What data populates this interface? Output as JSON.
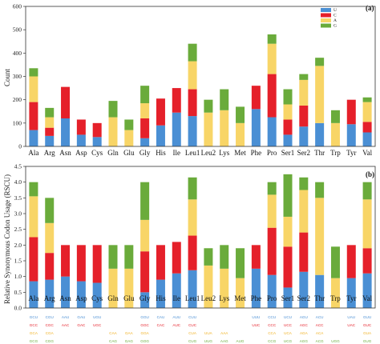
{
  "colors": {
    "U": "#4a8fd4",
    "C": "#e5202a",
    "A": "#f8d567",
    "G": "#6aab3b"
  },
  "legend": [
    "U",
    "C",
    "A",
    "G"
  ],
  "categories": [
    "Ala",
    "Arg",
    "Asn",
    "Asp",
    "Cys",
    "Gln",
    "Glu",
    "Gly",
    "His",
    "Ile",
    "Leu1",
    "Leu2",
    "Lys",
    "Met",
    "Phe",
    "Pro",
    "Ser1",
    "Ser2",
    "Thr",
    "Trp",
    "Tyr",
    "Val"
  ],
  "chart_data": [
    {
      "type": "bar",
      "panel_label": "(a)",
      "ylabel": "Count",
      "ylim": [
        0,
        600
      ],
      "yticks": [
        0,
        100,
        200,
        300,
        400,
        500,
        600
      ],
      "grid": false,
      "legend_position": "top-right",
      "series": [
        {
          "name": "U",
          "values": [
            70,
            45,
            120,
            50,
            40,
            0,
            0,
            35,
            90,
            145,
            130,
            0,
            0,
            0,
            160,
            125,
            50,
            85,
            100,
            0,
            95,
            60
          ]
        },
        {
          "name": "C",
          "values": [
            120,
            35,
            135,
            65,
            60,
            0,
            0,
            85,
            115,
            105,
            115,
            0,
            0,
            0,
            100,
            185,
            65,
            90,
            0,
            0,
            105,
            45
          ]
        },
        {
          "name": "A",
          "values": [
            110,
            45,
            0,
            0,
            0,
            125,
            70,
            65,
            0,
            0,
            120,
            145,
            155,
            100,
            0,
            130,
            65,
            110,
            245,
            100,
            0,
            85
          ]
        },
        {
          "name": "G",
          "values": [
            35,
            40,
            0,
            0,
            0,
            70,
            45,
            75,
            0,
            0,
            75,
            55,
            90,
            70,
            0,
            40,
            65,
            25,
            35,
            55,
            0,
            20
          ]
        }
      ]
    },
    {
      "type": "bar",
      "panel_label": "(b)",
      "ylabel": "Relative Synonymous Codon Usage (RSCU)",
      "ylim": [
        0,
        4.5
      ],
      "yticks": [
        0.0,
        0.5,
        1.0,
        1.5,
        2.0,
        2.5,
        3.0,
        3.5,
        4.0,
        4.5
      ],
      "grid": false,
      "series": [
        {
          "name": "U",
          "values": [
            0.85,
            0.9,
            1.0,
            0.85,
            0.8,
            0,
            0,
            0.5,
            0.9,
            1.1,
            1.2,
            0,
            0,
            0,
            1.25,
            1.05,
            0.65,
            1.15,
            1.05,
            0,
            0.95,
            1.1
          ]
        },
        {
          "name": "C",
          "values": [
            1.4,
            0.85,
            1.0,
            1.15,
            1.2,
            0,
            0,
            1.3,
            1.1,
            1.0,
            1.1,
            0,
            0,
            0,
            0.75,
            1.5,
            1.3,
            1.25,
            0,
            0,
            1.05,
            0.8
          ]
        },
        {
          "name": "A",
          "values": [
            1.3,
            0.95,
            0,
            0,
            0,
            1.25,
            1.25,
            1.0,
            0,
            0,
            1.15,
            1.35,
            1.25,
            0.95,
            0,
            1.05,
            0.95,
            1.35,
            2.45,
            0.95,
            0,
            1.55
          ]
        },
        {
          "name": "G",
          "values": [
            0.45,
            0.8,
            0,
            0,
            0,
            0.75,
            0.75,
            1.2,
            0,
            0,
            0.7,
            0.55,
            0.75,
            0.95,
            0,
            0.4,
            1.35,
            0.4,
            0.5,
            1.0,
            0,
            0.55
          ]
        }
      ]
    }
  ],
  "codons": [
    [
      [
        "GCU",
        "GCC",
        "GCA",
        "GCG"
      ],
      [
        "CGU",
        "CGC",
        "CGA",
        "CGG"
      ]
    ],
    [
      [
        "AAU",
        "AAC",
        "",
        ""
      ],
      [
        "GAU",
        "GAC",
        "",
        ""
      ]
    ],
    [
      [
        "UGU",
        "UGC",
        "",
        ""
      ],
      [
        "",
        "",
        "CAA",
        "CAG"
      ]
    ],
    [
      [
        "",
        "",
        "GAA",
        "GAG"
      ],
      [
        "GGU",
        "GGC",
        "GGA",
        "GGG"
      ]
    ],
    [
      [
        "CAU",
        "CAC",
        "",
        ""
      ],
      [
        "AUU",
        "AUC",
        "",
        ""
      ]
    ],
    [
      [
        "CUU",
        "CUC",
        "CUA",
        "CUG"
      ],
      [
        "",
        "",
        "UUA",
        "UUG"
      ]
    ],
    [
      [
        "",
        "",
        "AAA",
        "AAG"
      ],
      [
        "",
        "",
        "",
        "AUG"
      ]
    ],
    [
      [
        "UUU",
        "UUC",
        "",
        ""
      ],
      [
        "CCU",
        "CCC",
        "CCA",
        "CCG"
      ]
    ],
    [
      [
        "UCU",
        "UCC",
        "UCA",
        "UCG"
      ],
      [
        "AGU",
        "AGC",
        "",
        ""
      ]
    ],
    [
      [
        "ACU",
        "ACC",
        "ACA",
        "ACG"
      ],
      [
        "",
        "",
        "",
        "UGG"
      ]
    ],
    [
      [
        "UAU",
        "UAC",
        "",
        ""
      ],
      [
        "GUU",
        "GUC",
        "GUA",
        "GUG"
      ]
    ]
  ],
  "codon_rows": [
    [
      "GCU",
      "CGU",
      "AAU",
      "GAU",
      "UGU",
      "",
      "",
      "GGU",
      "CAU",
      "AUU",
      "CUU",
      "",
      "",
      "",
      "UUU",
      "CCU",
      "UCU",
      "AGU",
      "ACU",
      "",
      "UAU",
      "GUU"
    ],
    [
      "GCC",
      "CGC",
      "AAC",
      "GAC",
      "UGC",
      "",
      "",
      "GGC",
      "CAC",
      "AUC",
      "CUC",
      "",
      "",
      "",
      "UUC",
      "CCC",
      "UCC",
      "AGC",
      "ACC",
      "",
      "UAC",
      "GUC"
    ],
    [
      "GCA",
      "CGA",
      "",
      "",
      "",
      "CAA",
      "GAA",
      "GGA",
      "",
      "",
      "CUA",
      "UUA",
      "AAA",
      "",
      "",
      "CCA",
      "UCA",
      "AGA",
      "ACA",
      "",
      "",
      "GUA"
    ],
    [
      "GCG",
      "CGG",
      "",
      "",
      "",
      "CAG",
      "GAG",
      "GGG",
      "",
      "",
      "CUG",
      "UUG",
      "AAG",
      "AUG",
      "",
      "CCG",
      "UCG",
      "AGG",
      "ACG",
      "UGG",
      "",
      "GUG"
    ]
  ]
}
